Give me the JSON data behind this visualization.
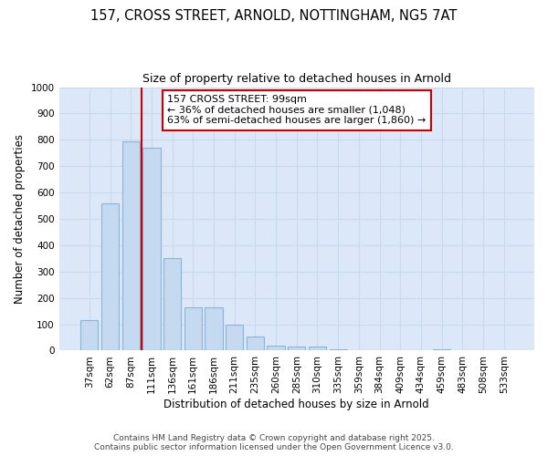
{
  "title": "157, CROSS STREET, ARNOLD, NOTTINGHAM, NG5 7AT",
  "subtitle": "Size of property relative to detached houses in Arnold",
  "xlabel": "Distribution of detached houses by size in Arnold",
  "ylabel": "Number of detached properties",
  "categories": [
    "37sqm",
    "62sqm",
    "87sqm",
    "111sqm",
    "136sqm",
    "161sqm",
    "186sqm",
    "211sqm",
    "235sqm",
    "260sqm",
    "285sqm",
    "310sqm",
    "335sqm",
    "359sqm",
    "384sqm",
    "409sqm",
    "434sqm",
    "459sqm",
    "483sqm",
    "508sqm",
    "533sqm"
  ],
  "values": [
    115,
    560,
    795,
    770,
    350,
    165,
    165,
    100,
    52,
    20,
    15,
    15,
    5,
    0,
    0,
    0,
    0,
    5,
    0,
    0,
    0
  ],
  "bar_color": "#c5d9f0",
  "bar_edge_color": "#8ab4d8",
  "grid_color": "#c8d8ee",
  "background_color": "#dce8f8",
  "fig_background": "#ffffff",
  "vline_color": "#cc0000",
  "vline_x": 2.5,
  "annotation_text": "157 CROSS STREET: 99sqm\n← 36% of detached houses are smaller (1,048)\n63% of semi-detached houses are larger (1,860) →",
  "annotation_box_color": "#ffffff",
  "annotation_box_edge_color": "#cc0000",
  "ylim": [
    0,
    1000
  ],
  "yticks": [
    0,
    100,
    200,
    300,
    400,
    500,
    600,
    700,
    800,
    900,
    1000
  ],
  "footer_line1": "Contains HM Land Registry data © Crown copyright and database right 2025.",
  "footer_line2": "Contains public sector information licensed under the Open Government Licence v3.0.",
  "title_fontsize": 10.5,
  "subtitle_fontsize": 9,
  "axis_label_fontsize": 8.5,
  "tick_fontsize": 7.5,
  "annotation_fontsize": 8,
  "footer_fontsize": 6.5
}
